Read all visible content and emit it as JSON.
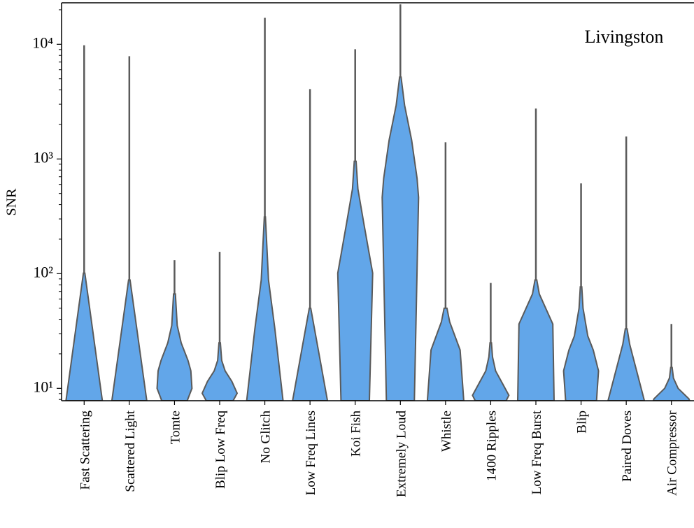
{
  "chart_data": {
    "type": "violin",
    "annotation": "Livingston",
    "ylabel": "SNR",
    "log_y": true,
    "color": "#62a6e9",
    "edge_color": "#5a5a5a",
    "ylim": [
      7.8,
      23000
    ],
    "yticks": [
      {
        "value": 10,
        "label": "10¹"
      },
      {
        "value": 100,
        "label": "10²"
      },
      {
        "value": 1000,
        "label": "10³"
      },
      {
        "value": 10000,
        "label": "10⁴"
      }
    ],
    "yminorticks": [
      8,
      9,
      20,
      30,
      40,
      50,
      60,
      70,
      80,
      90,
      200,
      300,
      400,
      500,
      600,
      700,
      800,
      900,
      2000,
      3000,
      4000,
      5000,
      6000,
      7000,
      8000,
      9000,
      20000
    ],
    "categories": [
      "Fast Scattering",
      "Scattered Light",
      "Tomte",
      "Blip Low Freq",
      "No Glitch",
      "Low Freq Lines",
      "Koi Fish",
      "Extremely Loud",
      "Whistle",
      "1400 Ripples",
      "Low Freq Burst",
      "Blip",
      "Paired Doves",
      "Air Compressor"
    ],
    "violins": [
      {
        "max": 9800,
        "y": [
          7.8,
          101
        ],
        "width": [
          1.0,
          0.04
        ]
      },
      {
        "max": 7870,
        "y": [
          7.8,
          88
        ],
        "width": [
          0.96,
          0.04
        ]
      },
      {
        "max": 131,
        "y": [
          7.8,
          10,
          14.2,
          17.5,
          24.9,
          35.4,
          66.5
        ],
        "width": [
          0.7,
          0.96,
          0.9,
          0.74,
          0.37,
          0.15,
          0.05
        ]
      },
      {
        "max": 155,
        "y": [
          7.8,
          9.06,
          11.5,
          14.2,
          17.5,
          24.9
        ],
        "width": [
          0.74,
          0.96,
          0.67,
          0.3,
          0.11,
          0.04
        ]
      },
      {
        "max": 17000,
        "y": [
          7.8,
          33,
          88,
          312
        ],
        "width": [
          1.0,
          0.55,
          0.2,
          0.03
        ]
      },
      {
        "max": 4070,
        "y": [
          7.8,
          50
        ],
        "width": [
          0.96,
          0.04
        ]
      },
      {
        "max": 9060,
        "y": [
          7.8,
          101,
          271,
          547,
          955
        ],
        "width": [
          0.78,
          0.96,
          0.48,
          0.15,
          0.05
        ]
      },
      {
        "max": 22300,
        "y": [
          7.8,
          462,
          675,
          1460,
          2950,
          5170
        ],
        "width": [
          0.77,
          1.0,
          0.92,
          0.62,
          0.23,
          0.04
        ]
      },
      {
        "max": 1400,
        "y": [
          7.8,
          21.6,
          37.9,
          50
        ],
        "width": [
          1.0,
          0.8,
          0.23,
          0.08
        ]
      },
      {
        "max": 83,
        "y": [
          7.8,
          8.69,
          11,
          14.2,
          18.8,
          24.9
        ],
        "width": [
          0.85,
          1.0,
          0.65,
          0.27,
          0.1,
          0.04
        ]
      },
      {
        "max": 2750,
        "y": [
          7.8,
          36.4,
          66.5,
          88
        ],
        "width": [
          1.0,
          0.93,
          0.19,
          0.05
        ]
      },
      {
        "max": 612,
        "y": [
          7.8,
          14.2,
          21.6,
          28.6,
          50,
          76.6
        ],
        "width": [
          0.85,
          0.96,
          0.67,
          0.37,
          0.11,
          0.04
        ]
      },
      {
        "max": 1570,
        "y": [
          7.8,
          24.2,
          33
        ],
        "width": [
          1.0,
          0.19,
          0.05
        ]
      },
      {
        "max": 36.4,
        "y": [
          7.8,
          8.1,
          10,
          12.3,
          15.2
        ],
        "width": [
          1.0,
          0.96,
          0.37,
          0.11,
          0.04
        ]
      }
    ]
  }
}
